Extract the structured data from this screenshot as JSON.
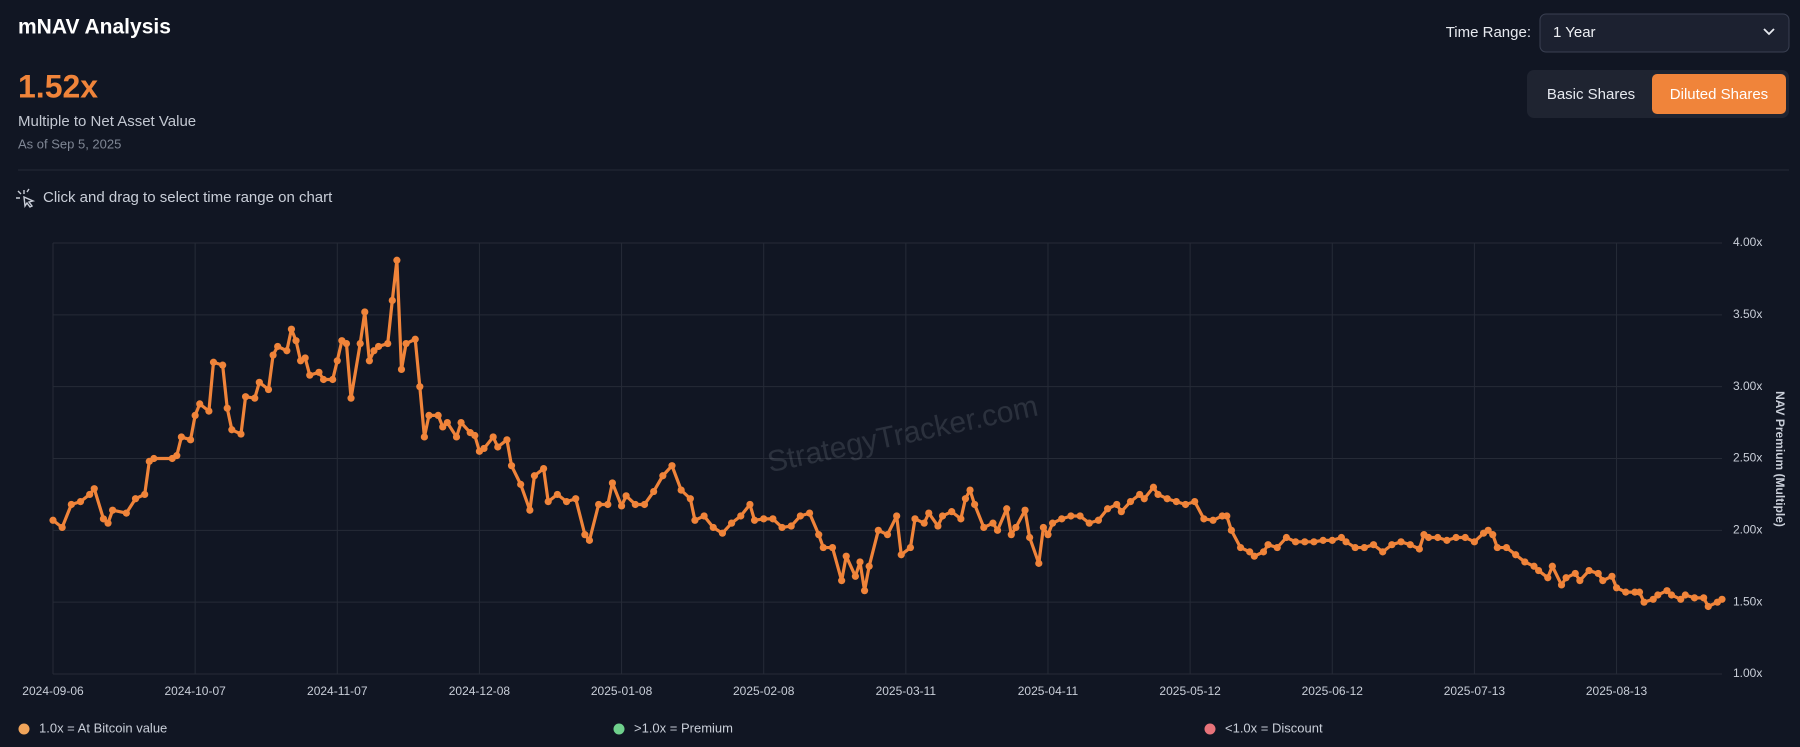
{
  "header": {
    "title": "mNAV Analysis",
    "value": "1.52x",
    "value_caption": "Multiple to Net Asset Value",
    "as_of": "As of Sep 5, 2025",
    "hint": "Click and drag to select time range on chart"
  },
  "controls": {
    "time_range_label": "Time Range:",
    "time_range_value": "1 Year",
    "buttons": [
      "Basic Shares",
      "Diluted Shares"
    ]
  },
  "chart_data": {
    "type": "line",
    "color": "#f0843a",
    "grid": true,
    "y_label": "NAV Premium (Multiple)",
    "watermark": "StrategyTracker.com",
    "xlim": [
      "2024-09-06",
      "2025-09-05"
    ],
    "xticks": [
      "2024-09-06",
      "2024-10-07",
      "2024-11-07",
      "2024-12-08",
      "2025-01-08",
      "2025-02-08",
      "2025-03-11",
      "2025-04-11",
      "2025-05-12",
      "2025-06-12",
      "2025-07-13",
      "2025-08-13"
    ],
    "ylim": [
      1,
      4
    ],
    "yticks": [
      {
        "value": 1,
        "label": "1.00x"
      },
      {
        "value": 1.5,
        "label": "1.50x"
      },
      {
        "value": 2,
        "label": "2.00x"
      },
      {
        "value": 2.5,
        "label": "2.50x"
      },
      {
        "value": 3,
        "label": "3.00x"
      },
      {
        "value": 3.5,
        "label": "3.50x"
      },
      {
        "value": 4,
        "label": "4.00x"
      }
    ],
    "x": [
      "2024-09-06",
      "2024-09-08",
      "2024-09-10",
      "2024-09-12",
      "2024-09-14",
      "2024-09-15",
      "2024-09-17",
      "2024-09-18",
      "2024-09-19",
      "2024-09-22",
      "2024-09-24",
      "2024-09-26",
      "2024-09-27",
      "2024-09-28",
      "2024-10-02",
      "2024-10-03",
      "2024-10-04",
      "2024-10-06",
      "2024-10-07",
      "2024-10-08",
      "2024-10-10",
      "2024-10-11",
      "2024-10-13",
      "2024-10-14",
      "2024-10-15",
      "2024-10-17",
      "2024-10-18",
      "2024-10-20",
      "2024-10-21",
      "2024-10-23",
      "2024-10-24",
      "2024-10-25",
      "2024-10-27",
      "2024-10-28",
      "2024-10-29",
      "2024-10-30",
      "2024-10-31",
      "2024-11-01",
      "2024-11-03",
      "2024-11-04",
      "2024-11-06",
      "2024-11-07",
      "2024-11-08",
      "2024-11-09",
      "2024-11-10",
      "2024-11-12",
      "2024-11-13",
      "2024-11-14",
      "2024-11-15",
      "2024-11-16",
      "2024-11-18",
      "2024-11-19",
      "2024-11-20",
      "2024-11-21",
      "2024-11-22",
      "2024-11-24",
      "2024-11-25",
      "2024-11-26",
      "2024-11-27",
      "2024-11-29",
      "2024-11-30",
      "2024-12-01",
      "2024-12-03",
      "2024-12-04",
      "2024-12-06",
      "2024-12-07",
      "2024-12-08",
      "2024-12-09",
      "2024-12-11",
      "2024-12-12",
      "2024-12-14",
      "2024-12-15",
      "2024-12-17",
      "2024-12-19",
      "2024-12-20",
      "2024-12-22",
      "2024-12-23",
      "2024-12-25",
      "2024-12-27",
      "2024-12-29",
      "2024-12-31",
      "2025-01-01",
      "2025-01-03",
      "2025-01-05",
      "2025-01-06",
      "2025-01-08",
      "2025-01-09",
      "2025-01-11",
      "2025-01-13",
      "2025-01-15",
      "2025-01-17",
      "2025-01-19",
      "2025-01-21",
      "2025-01-23",
      "2025-01-24",
      "2025-01-26",
      "2025-01-28",
      "2025-01-30",
      "2025-02-01",
      "2025-02-03",
      "2025-02-05",
      "2025-02-06",
      "2025-02-08",
      "2025-02-10",
      "2025-02-12",
      "2025-02-14",
      "2025-02-16",
      "2025-02-18",
      "2025-02-20",
      "2025-02-21",
      "2025-02-23",
      "2025-02-25",
      "2025-02-26",
      "2025-02-28",
      "2025-03-01",
      "2025-03-02",
      "2025-03-03",
      "2025-03-05",
      "2025-03-07",
      "2025-03-09",
      "2025-03-10",
      "2025-03-12",
      "2025-03-13",
      "2025-03-15",
      "2025-03-16",
      "2025-03-18",
      "2025-03-19",
      "2025-03-21",
      "2025-03-23",
      "2025-03-24",
      "2025-03-25",
      "2025-03-26",
      "2025-03-28",
      "2025-03-30",
      "2025-03-31",
      "2025-04-02",
      "2025-04-03",
      "2025-04-04",
      "2025-04-06",
      "2025-04-07",
      "2025-04-09",
      "2025-04-10",
      "2025-04-11",
      "2025-04-12",
      "2025-04-14",
      "2025-04-16",
      "2025-04-18",
      "2025-04-20",
      "2025-04-22",
      "2025-04-24",
      "2025-04-26",
      "2025-04-27",
      "2025-04-29",
      "2025-05-01",
      "2025-05-02",
      "2025-05-04",
      "2025-05-05",
      "2025-05-07",
      "2025-05-09",
      "2025-05-11",
      "2025-05-13",
      "2025-05-15",
      "2025-05-17",
      "2025-05-19",
      "2025-05-20",
      "2025-05-21",
      "2025-05-23",
      "2025-05-25",
      "2025-05-26",
      "2025-05-28",
      "2025-05-29",
      "2025-05-31",
      "2025-06-02",
      "2025-06-04",
      "2025-06-06",
      "2025-06-08",
      "2025-06-10",
      "2025-06-12",
      "2025-06-14",
      "2025-06-15",
      "2025-06-17",
      "2025-06-19",
      "2025-06-21",
      "2025-06-23",
      "2025-06-25",
      "2025-06-27",
      "2025-06-29",
      "2025-07-01",
      "2025-07-02",
      "2025-07-03",
      "2025-07-05",
      "2025-07-07",
      "2025-07-09",
      "2025-07-11",
      "2025-07-13",
      "2025-07-15",
      "2025-07-16",
      "2025-07-17",
      "2025-07-18",
      "2025-07-20",
      "2025-07-22",
      "2025-07-24",
      "2025-07-26",
      "2025-07-27",
      "2025-07-29",
      "2025-07-30",
      "2025-08-01",
      "2025-08-02",
      "2025-08-04",
      "2025-08-05",
      "2025-08-07",
      "2025-08-09",
      "2025-08-10",
      "2025-08-12",
      "2025-08-13",
      "2025-08-15",
      "2025-08-17",
      "2025-08-18",
      "2025-08-19",
      "2025-08-21",
      "2025-08-22",
      "2025-08-24",
      "2025-08-25",
      "2025-08-27",
      "2025-08-28",
      "2025-08-30",
      "2025-09-01",
      "2025-09-02",
      "2025-09-04",
      "2025-09-05"
    ],
    "values": [
      2.07,
      2.02,
      2.18,
      2.2,
      2.25,
      2.29,
      2.08,
      2.05,
      2.14,
      2.12,
      2.22,
      2.25,
      2.48,
      2.5,
      2.5,
      2.52,
      2.65,
      2.63,
      2.8,
      2.88,
      2.83,
      3.17,
      3.15,
      2.85,
      2.7,
      2.67,
      2.93,
      2.92,
      3.03,
      2.98,
      3.22,
      3.28,
      3.25,
      3.4,
      3.32,
      3.18,
      3.2,
      3.08,
      3.1,
      3.05,
      3.05,
      3.18,
      3.32,
      3.3,
      2.92,
      3.3,
      3.52,
      3.18,
      3.25,
      3.28,
      3.3,
      3.6,
      3.88,
      3.12,
      3.3,
      3.33,
      3.0,
      2.65,
      2.8,
      2.8,
      2.72,
      2.75,
      2.65,
      2.75,
      2.68,
      2.66,
      2.55,
      2.57,
      2.65,
      2.58,
      2.63,
      2.45,
      2.32,
      2.14,
      2.38,
      2.43,
      2.2,
      2.25,
      2.2,
      2.22,
      1.97,
      1.93,
      2.18,
      2.18,
      2.33,
      2.17,
      2.24,
      2.18,
      2.18,
      2.27,
      2.38,
      2.45,
      2.28,
      2.22,
      2.07,
      2.1,
      2.02,
      1.98,
      2.05,
      2.1,
      2.18,
      2.07,
      2.08,
      2.08,
      2.02,
      2.03,
      2.1,
      2.12,
      1.97,
      1.88,
      1.88,
      1.65,
      1.82,
      1.68,
      1.78,
      1.58,
      1.75,
      2.0,
      1.97,
      2.1,
      1.83,
      1.88,
      2.08,
      2.05,
      2.12,
      2.03,
      2.1,
      2.13,
      2.08,
      2.22,
      2.28,
      2.18,
      2.02,
      2.05,
      2.0,
      2.15,
      1.97,
      2.02,
      2.14,
      1.95,
      1.77,
      2.02,
      1.97,
      2.05,
      2.08,
      2.1,
      2.1,
      2.05,
      2.07,
      2.15,
      2.18,
      2.13,
      2.2,
      2.25,
      2.22,
      2.3,
      2.25,
      2.22,
      2.2,
      2.18,
      2.2,
      2.08,
      2.07,
      2.1,
      2.1,
      2.0,
      1.88,
      1.85,
      1.82,
      1.85,
      1.9,
      1.88,
      1.95,
      1.92,
      1.92,
      1.92,
      1.93,
      1.93,
      1.95,
      1.92,
      1.88,
      1.88,
      1.9,
      1.85,
      1.9,
      1.92,
      1.9,
      1.87,
      1.97,
      1.95,
      1.95,
      1.93,
      1.95,
      1.95,
      1.92,
      1.98,
      2.0,
      1.97,
      1.88,
      1.88,
      1.83,
      1.78,
      1.75,
      1.72,
      1.67,
      1.75,
      1.62,
      1.67,
      1.7,
      1.65,
      1.72,
      1.7,
      1.65,
      1.68,
      1.6,
      1.57,
      1.57,
      1.57,
      1.5,
      1.52,
      1.55,
      1.58,
      1.55,
      1.52,
      1.55,
      1.53,
      1.53,
      1.47,
      1.5,
      1.52
    ],
    "legend": [
      {
        "label": "1.0x = At Bitcoin value",
        "color": "#f0a45a"
      },
      {
        "label": ">1.0x = Premium",
        "color": "#6fd08c"
      },
      {
        "label": "<1.0x = Discount",
        "color": "#e8737a"
      }
    ]
  }
}
